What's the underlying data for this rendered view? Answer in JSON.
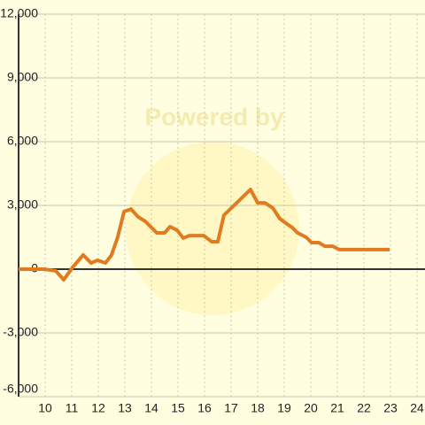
{
  "chart_data": {
    "type": "line",
    "watermark": "Powered by",
    "xlim": [
      9,
      24.3
    ],
    "xticks": [
      10,
      11,
      12,
      13,
      14,
      15,
      16,
      17,
      18,
      19,
      20,
      21,
      22,
      23,
      24
    ],
    "ylim": [
      -6000,
      12000
    ],
    "yticks": [
      {
        "value": -6000,
        "label": "-6,000"
      },
      {
        "value": -3000,
        "label": "-3,000"
      },
      0,
      {
        "value": 3000,
        "label": "3,000"
      },
      {
        "value": 6000,
        "label": "6,000"
      },
      {
        "value": 9000,
        "label": "9,000"
      },
      {
        "value": 12000,
        "label": "12,000"
      }
    ],
    "grid": true,
    "series": [
      {
        "color": "#e07b20",
        "x": [
          9.0,
          9.97,
          10.4,
          10.7,
          11.03,
          11.43,
          11.73,
          11.97,
          12.27,
          12.5,
          12.73,
          12.97,
          13.23,
          13.5,
          13.77,
          14.2,
          14.5,
          14.7,
          14.97,
          15.2,
          15.43,
          15.97,
          16.27,
          16.5,
          16.73,
          17.73,
          18.0,
          18.27,
          18.57,
          18.83,
          19.1,
          19.3,
          19.5,
          19.83,
          20.03,
          20.3,
          20.53,
          20.83,
          21.07,
          22.97
        ],
        "values": [
          0,
          0,
          -80,
          -500,
          80,
          670,
          290,
          420,
          290,
          670,
          1500,
          2710,
          2830,
          2460,
          2250,
          1710,
          1710,
          2000,
          1830,
          1460,
          1580,
          1580,
          1290,
          1290,
          2540,
          3750,
          3120,
          3120,
          2880,
          2380,
          2130,
          1960,
          1710,
          1500,
          1250,
          1250,
          1080,
          1080,
          920,
          920
        ]
      }
    ]
  }
}
